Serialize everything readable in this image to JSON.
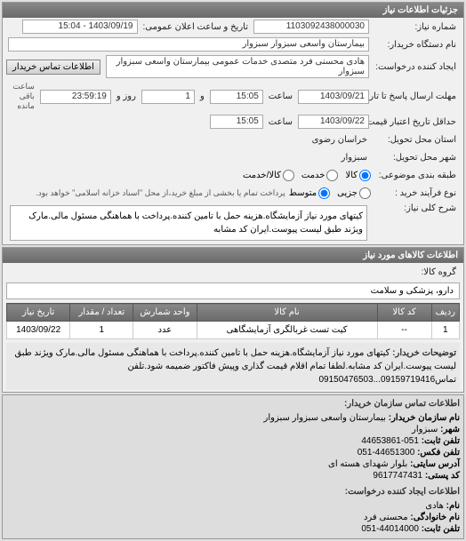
{
  "panel_title": "جزئیات اطلاعات نیاز",
  "request_no": {
    "label": "شماره نیاز:",
    "value": "1103092438000030"
  },
  "announce_dt": {
    "label": "تاریخ و ساعت اعلان عمومی:",
    "value": "1403/09/19 - 15:04"
  },
  "device_name": {
    "label": "نام دستگاه خریدار:",
    "value": "بیمارستان واسعی سبزوار سبزوار"
  },
  "creator": {
    "label": "ایجاد کننده درخواست:",
    "value": "هادی محسنی فرد متصدی خدمات عمومی بیمارستان واسعی سبزوار سبزوار"
  },
  "contact_btn": "اطلاعات تماس خریدار",
  "deadline": {
    "label": "مهلت ارسال پاسخ تا تاریخ:",
    "date": "1403/09/21",
    "time_label": "ساعت",
    "time": "15:05",
    "days_label": "و",
    "days": "1",
    "remain_label": "روز و",
    "remain_time": "23:59:19",
    "remain_note": "ساعت باقی مانده"
  },
  "price_valid": {
    "label": "حداقل تاریخ اعتبار قیمت: تا تاریخ:",
    "date": "1403/09/22",
    "time_label": "ساعت",
    "time": "15:05"
  },
  "delivery_province": {
    "label": "استان محل تحویل:",
    "value": "خراسان رضوی"
  },
  "delivery_city": {
    "label": "شهر محل تحویل:",
    "value": "سبزوار"
  },
  "category_type": {
    "label": "طبقه بندی موضوعی:",
    "options": [
      "کالا",
      "خدمت",
      "کالا/خدمت"
    ],
    "selected": 0
  },
  "purchase_type": {
    "label": "نوع فرآیند خرید :",
    "options": [
      "جزیی",
      "متوسط"
    ],
    "selected": 1,
    "note": "پرداخت تمام یا بخشی از مبلغ خرید،از محل \"اسناد خزانه اسلامی\" خواهد بود."
  },
  "general_keys": {
    "label": "شرح کلی نیاز:",
    "text": "کیتهای مورد نیاز آزمایشگاه.هزینه حمل با تامین کننده.پرداخت با هماهنگی مسئول مالی.مارک ویژند طبق لیست پیوست.ایران کد مشابه"
  },
  "items_panel_title": "اطلاعات کالاهای مورد نیاز",
  "product_group": {
    "label": "گروه کالا:",
    "value": "دارو، پزشکی و سلامت"
  },
  "table": {
    "columns": [
      "ردیف",
      "کد کالا",
      "نام کالا",
      "واحد شمارش",
      "تعداد / مقدار",
      "تاریخ نیاز"
    ],
    "rows": [
      [
        "1",
        "--",
        "کیت تست غربالگری آزمایشگاهی",
        "عدد",
        "1",
        "1403/09/22"
      ]
    ],
    "col_widths": [
      "6%",
      "12%",
      "40%",
      "14%",
      "14%",
      "14%"
    ]
  },
  "buyer_desc": {
    "label": "توضیحات خریدار:",
    "text": "کیتهای مورد نیاز آزمایشگاه.هزینه حمل با تامین کننده.پرداخت با هماهنگی مسئول مالی.مارک ویژند طبق لیست پیوست.ایران کد مشابه.لطفا تمام اقلام قیمت گذاری وپیش فاکتور ضمیمه شود.تلفن تماس09159719416...09150476503"
  },
  "contact_org": {
    "header": "اطلاعات تماس سازمان خریدار:",
    "rows": [
      {
        "k": "نام سازمان خریدار:",
        "v": "بیمارستان واسعی سبزوار سبزوار"
      },
      {
        "k": "شهر:",
        "v": "سبزوار"
      },
      {
        "k": "تلفن ثابت:",
        "v": "051-44653861"
      },
      {
        "k": "تلفن فکس:",
        "v": "44651300-051"
      },
      {
        "k": "آدرس سایتی:",
        "v": "بلوار شهدای هسته ای"
      },
      {
        "k": "کد پستی:",
        "v": "9617747431"
      }
    ]
  },
  "contact_creator": {
    "header": "اطلاعات ایجاد کننده درخواست:",
    "rows": [
      {
        "k": "نام:",
        "v": "هادی"
      },
      {
        "k": "نام خانوادگی:",
        "v": "محسنی فرد"
      },
      {
        "k": "تلفن ثابت:",
        "v": "44014000-051"
      }
    ]
  }
}
